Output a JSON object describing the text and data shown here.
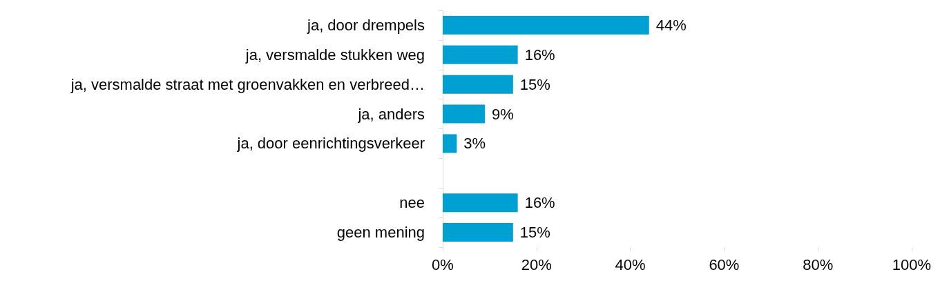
{
  "chart_data": {
    "type": "bar",
    "orientation": "horizontal",
    "categories": [
      "ja, door drempels",
      "ja, versmalde stukken weg",
      "ja, versmalde straat met groenvakken en verbreed…",
      "ja, anders",
      "ja, door eenrichtingsverkeer",
      null,
      "nee",
      "geen mening"
    ],
    "values": [
      44,
      16,
      15,
      9,
      3,
      null,
      16,
      15
    ],
    "value_labels": [
      "44%",
      "16%",
      "15%",
      "9%",
      "3%",
      null,
      "16%",
      "15%"
    ],
    "color": "#00a0d2",
    "xlim": [
      0,
      100
    ],
    "xticks": [
      {
        "value": 0,
        "label": "0%"
      },
      {
        "value": 20,
        "label": "20%"
      },
      {
        "value": 40,
        "label": "40%"
      },
      {
        "value": 60,
        "label": "60%"
      },
      {
        "value": 80,
        "label": "80%"
      },
      {
        "value": 100,
        "label": "100%"
      }
    ],
    "grid": false
  }
}
